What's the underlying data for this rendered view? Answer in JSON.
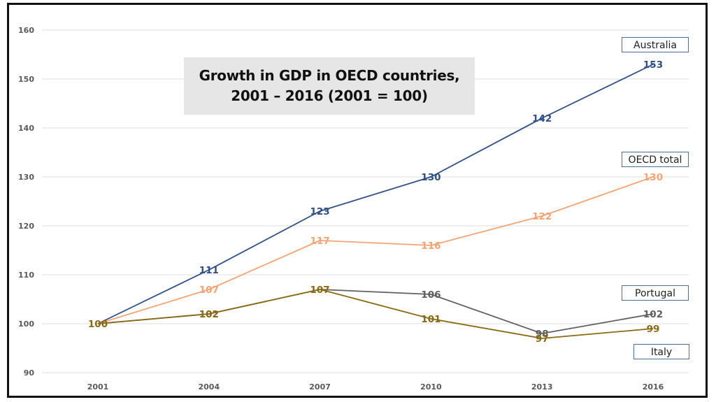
{
  "chart_data": {
    "type": "line",
    "title": "Growth in GDP in OECD countries,",
    "subtitle": "2001 – 2016 (2001 = 100)",
    "xlabel": "",
    "ylabel": "",
    "categories": [
      "2001",
      "2004",
      "2007",
      "2010",
      "2013",
      "2016"
    ],
    "ylim": [
      90,
      160
    ],
    "yticks": [
      "90",
      "100",
      "110",
      "120",
      "130",
      "140",
      "150",
      "160"
    ],
    "grid": true,
    "legend": "inline-labels-right",
    "series": [
      {
        "name": "Australia",
        "color": "#2f4f86",
        "values": [
          100,
          111,
          123,
          130,
          142,
          153
        ],
        "labels": [
          "",
          "111",
          "123",
          "130",
          "142",
          "153"
        ]
      },
      {
        "name": "OECD total",
        "color": "#f4a575",
        "values": [
          100,
          107,
          117,
          116,
          122,
          130
        ],
        "labels": [
          "",
          "107",
          "117",
          "116",
          "122",
          "130"
        ]
      },
      {
        "name": "Portugal",
        "color": "#606060",
        "values": [
          100,
          102,
          107,
          106,
          98,
          102
        ],
        "labels": [
          "",
          "102",
          "",
          "106",
          "98",
          "102"
        ]
      },
      {
        "name": "Italy",
        "color": "#8a6a12",
        "values": [
          100,
          102,
          107,
          101,
          97,
          99
        ],
        "labels": [
          "100",
          "102",
          "107",
          "101",
          "97",
          "99"
        ]
      }
    ]
  }
}
